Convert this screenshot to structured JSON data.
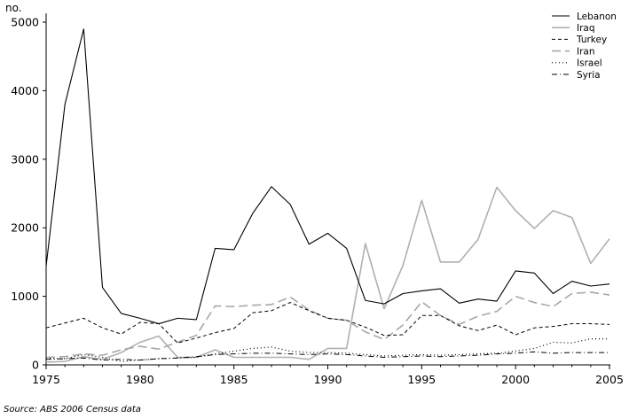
{
  "chart_data": {
    "type": "line",
    "title": "",
    "xlabel": "",
    "ylabel": "no.",
    "xlim": [
      1975,
      2005
    ],
    "ylim": [
      0,
      5000
    ],
    "grid": false,
    "legend_position": "top-right",
    "x_ticks": [
      1975,
      1980,
      1985,
      1990,
      1995,
      2000,
      2005
    ],
    "y_ticks": [
      0,
      1000,
      2000,
      3000,
      4000,
      5000
    ],
    "x": [
      1975,
      1976,
      1977,
      1978,
      1979,
      1980,
      1981,
      1982,
      1983,
      1984,
      1985,
      1986,
      1987,
      1988,
      1989,
      1990,
      1991,
      1992,
      1993,
      1994,
      1995,
      1996,
      1997,
      1998,
      1999,
      2000,
      2001,
      2002,
      2003,
      2004,
      2005
    ],
    "series": [
      {
        "name": "Lebanon",
        "color": "#000000",
        "dash": "solid",
        "width": 1.1,
        "values": [
          1440,
          3800,
          4900,
          1130,
          750,
          680,
          600,
          680,
          660,
          1700,
          1680,
          2210,
          2600,
          2340,
          1760,
          1920,
          1700,
          940,
          890,
          1040,
          1080,
          1110,
          900,
          960,
          930,
          1370,
          1340,
          1040,
          1220,
          1150,
          1180
        ]
      },
      {
        "name": "Iraq",
        "color": "#b0b0b0",
        "dash": "solid",
        "width": 1.6,
        "values": [
          40,
          50,
          120,
          80,
          180,
          330,
          420,
          110,
          110,
          220,
          110,
          110,
          110,
          110,
          80,
          240,
          240,
          1770,
          820,
          1450,
          2400,
          1500,
          1500,
          1830,
          2590,
          2250,
          1990,
          2250,
          2150,
          1480,
          1840
        ]
      },
      {
        "name": "Turkey",
        "color": "#000000",
        "dash": "4,3",
        "width": 1.0,
        "values": [
          540,
          610,
          680,
          540,
          450,
          620,
          600,
          320,
          390,
          470,
          530,
          760,
          790,
          910,
          790,
          680,
          650,
          550,
          430,
          440,
          720,
          720,
          570,
          500,
          580,
          440,
          540,
          560,
          600,
          600,
          590
        ]
      },
      {
        "name": "Iran",
        "color": "#a8a8a8",
        "dash": "10,5",
        "width": 1.6,
        "values": [
          110,
          120,
          160,
          140,
          220,
          270,
          230,
          330,
          430,
          860,
          850,
          870,
          880,
          990,
          800,
          680,
          650,
          480,
          370,
          580,
          920,
          720,
          590,
          710,
          780,
          1000,
          910,
          850,
          1040,
          1060,
          1020
        ]
      },
      {
        "name": "Israel",
        "color": "#000000",
        "dash": "1,3",
        "width": 1.2,
        "values": [
          100,
          90,
          150,
          110,
          50,
          70,
          90,
          100,
          110,
          160,
          200,
          240,
          260,
          200,
          180,
          180,
          170,
          150,
          130,
          140,
          150,
          140,
          150,
          160,
          170,
          200,
          240,
          330,
          320,
          380,
          380
        ]
      },
      {
        "name": "Syria",
        "color": "#000000",
        "dash": "6,3,1,3",
        "width": 1.0,
        "values": [
          80,
          90,
          100,
          70,
          80,
          70,
          90,
          100,
          120,
          150,
          160,
          170,
          170,
          160,
          150,
          160,
          150,
          130,
          110,
          120,
          130,
          120,
          130,
          140,
          160,
          170,
          190,
          170,
          180,
          180,
          180
        ]
      }
    ]
  },
  "source_note": "Source: ABS 2006 Census data"
}
